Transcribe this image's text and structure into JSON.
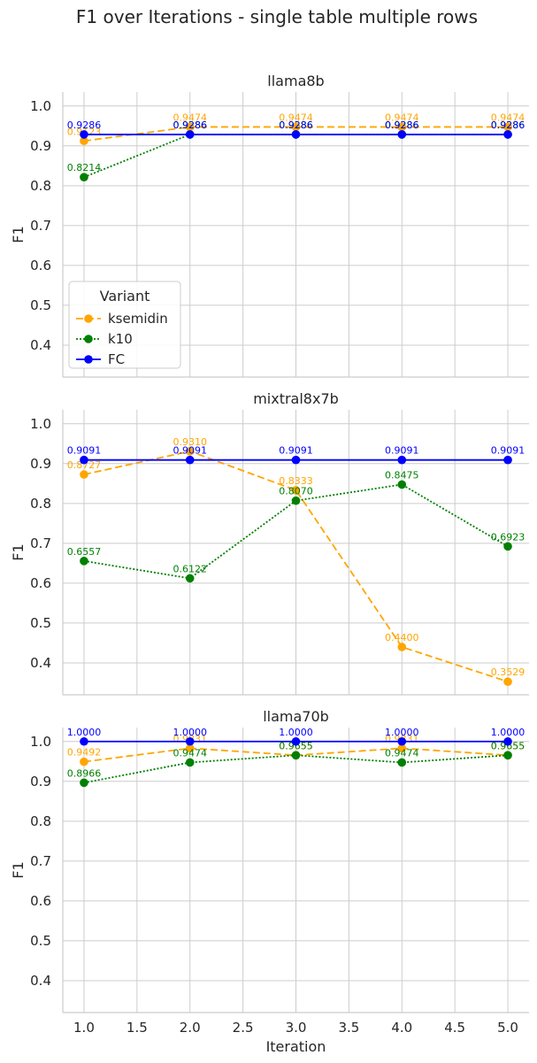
{
  "title": "F1 over Iterations - single table multiple rows",
  "chart_data": [
    {
      "type": "line",
      "title": "llama8b",
      "xlabel": "",
      "ylabel": "F1",
      "x": [
        1.0,
        2.0,
        3.0,
        4.0,
        5.0
      ],
      "xlim": [
        0.8,
        5.2
      ],
      "ylim": [
        0.32,
        1.035
      ],
      "xticks": [
        "1.0",
        "1.5",
        "2.0",
        "2.5",
        "3.0",
        "3.5",
        "4.0",
        "4.5",
        "5.0"
      ],
      "yticks": [
        "0.4",
        "0.5",
        "0.6",
        "0.7",
        "0.8",
        "0.9",
        "1.0"
      ],
      "grid": true,
      "series": [
        {
          "name": "ksemidin",
          "color": "#ffa500",
          "dash": "dashed",
          "values": [
            0.9123,
            0.9474,
            0.9474,
            0.9474,
            0.9474
          ],
          "labels": [
            "0.9123",
            "0.9474",
            "0.9474",
            "0.9474",
            "0.9474"
          ]
        },
        {
          "name": "k10",
          "color": "#008000",
          "dash": "dotted",
          "values": [
            0.8214,
            0.9286,
            0.9286,
            0.9286,
            0.9286
          ],
          "labels": [
            "0.8214",
            "0.9286",
            "0.9286",
            "0.9286",
            "0.9286"
          ]
        },
        {
          "name": "FC",
          "color": "#0000ff",
          "dash": "solid",
          "values": [
            0.9286,
            0.9286,
            0.9286,
            0.9286,
            0.9286
          ],
          "labels": [
            "0.9286",
            "0.9286",
            "0.9286",
            "0.9286",
            "0.9286"
          ]
        }
      ]
    },
    {
      "type": "line",
      "title": "mixtral8x7b",
      "xlabel": "",
      "ylabel": "F1",
      "x": [
        1.0,
        2.0,
        3.0,
        4.0,
        5.0
      ],
      "xlim": [
        0.8,
        5.2
      ],
      "ylim": [
        0.32,
        1.035
      ],
      "xticks": [
        "1.0",
        "1.5",
        "2.0",
        "2.5",
        "3.0",
        "3.5",
        "4.0",
        "4.5",
        "5.0"
      ],
      "yticks": [
        "0.4",
        "0.5",
        "0.6",
        "0.7",
        "0.8",
        "0.9",
        "1.0"
      ],
      "grid": true,
      "series": [
        {
          "name": "ksemidin",
          "color": "#ffa500",
          "dash": "dashed",
          "values": [
            0.8727,
            0.931,
            0.8333,
            0.44,
            0.3529
          ],
          "labels": [
            "0.8727",
            "0.9310",
            "0.8333",
            "0.4400",
            "0.3529"
          ]
        },
        {
          "name": "k10",
          "color": "#008000",
          "dash": "dotted",
          "values": [
            0.6557,
            0.6122,
            0.807,
            0.8475,
            0.6923
          ],
          "labels": [
            "0.6557",
            "0.6122",
            "0.8070",
            "0.8475",
            "0.6923"
          ]
        },
        {
          "name": "FC",
          "color": "#0000ff",
          "dash": "solid",
          "values": [
            0.9091,
            0.9091,
            0.9091,
            0.9091,
            0.9091
          ],
          "labels": [
            "0.9091",
            "0.9091",
            "0.9091",
            "0.9091",
            "0.9091"
          ]
        }
      ]
    },
    {
      "type": "line",
      "title": "llama70b",
      "xlabel": "Iteration",
      "ylabel": "F1",
      "x": [
        1.0,
        2.0,
        3.0,
        4.0,
        5.0
      ],
      "xlim": [
        0.8,
        5.2
      ],
      "ylim": [
        0.32,
        1.035
      ],
      "xticks": [
        "1.0",
        "1.5",
        "2.0",
        "2.5",
        "3.0",
        "3.5",
        "4.0",
        "4.5",
        "5.0"
      ],
      "yticks": [
        "0.4",
        "0.5",
        "0.6",
        "0.7",
        "0.8",
        "0.9",
        "1.0"
      ],
      "grid": true,
      "series": [
        {
          "name": "ksemidin",
          "color": "#ffa500",
          "dash": "dashed",
          "values": [
            0.9492,
            0.9831,
            0.9655,
            0.9831,
            0.9655
          ],
          "labels": [
            "0.9492",
            "0.9831",
            "0.9655",
            "0.9831",
            "0.9655"
          ]
        },
        {
          "name": "k10",
          "color": "#008000",
          "dash": "dotted",
          "values": [
            0.8966,
            0.9474,
            0.9655,
            0.9474,
            0.9655
          ],
          "labels": [
            "0.8966",
            "0.9474",
            "0.9655",
            "0.9474",
            "0.9655"
          ]
        },
        {
          "name": "FC",
          "color": "#0000ff",
          "dash": "solid",
          "values": [
            1.0,
            1.0,
            1.0,
            1.0,
            1.0
          ],
          "labels": [
            "1.0000",
            "1.0000",
            "1.0000",
            "1.0000",
            "1.0000"
          ]
        }
      ]
    }
  ],
  "legend": {
    "title": "Variant",
    "placement": "lower-left of first panel",
    "entries": [
      {
        "label": "ksemidin",
        "color": "#ffa500",
        "dash": "dashed"
      },
      {
        "label": "k10",
        "color": "#008000",
        "dash": "dotted"
      },
      {
        "label": "FC",
        "color": "#0000ff",
        "dash": "solid"
      }
    ]
  }
}
